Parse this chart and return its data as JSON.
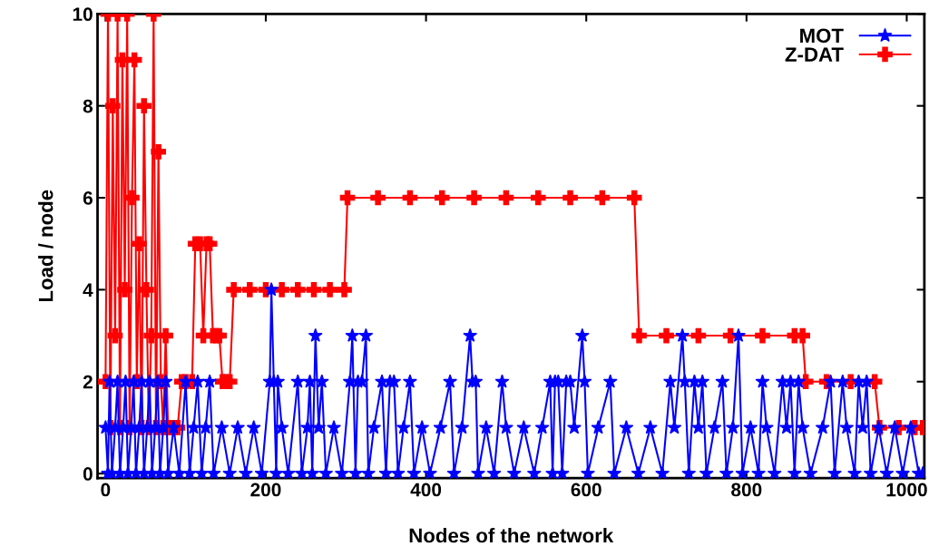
{
  "chart_data": {
    "type": "line",
    "xlabel": "Nodes of the network",
    "ylabel": "Load / node",
    "xlim": [
      -10,
      1022
    ],
    "ylim": [
      -0.1,
      10
    ],
    "xticks": [
      0,
      200,
      400,
      600,
      800,
      1000
    ],
    "yticks": [
      0,
      2,
      4,
      6,
      8,
      10
    ],
    "grid": false,
    "legend": "top right",
    "line_style": "solid",
    "series": [
      {
        "name": "MOT",
        "color": "#0000ff",
        "marker": "star",
        "x": [
          0,
          3,
          5,
          8,
          12,
          15,
          18,
          22,
          25,
          28,
          32,
          35,
          38,
          42,
          45,
          48,
          52,
          55,
          58,
          62,
          65,
          68,
          72,
          75,
          78,
          85,
          92,
          100,
          105,
          110,
          115,
          120,
          125,
          130,
          135,
          145,
          155,
          165,
          175,
          185,
          195,
          205,
          207,
          210,
          213,
          215,
          220,
          228,
          240,
          245,
          252,
          255,
          258,
          262,
          266,
          270,
          275,
          285,
          295,
          305,
          308,
          312,
          315,
          320,
          325,
          328,
          335,
          345,
          350,
          355,
          360,
          365,
          372,
          380,
          385,
          395,
          405,
          418,
          430,
          435,
          445,
          455,
          458,
          462,
          465,
          475,
          485,
          495,
          500,
          510,
          522,
          535,
          545,
          555,
          558,
          561,
          565,
          570,
          575,
          580,
          585,
          595,
          598,
          602,
          615,
          630,
          635,
          650,
          665,
          680,
          695,
          705,
          710,
          720,
          723,
          728,
          735,
          740,
          745,
          750,
          760,
          770,
          775,
          783,
          790,
          795,
          805,
          815,
          820,
          825,
          835,
          845,
          850,
          855,
          860,
          865,
          870,
          880,
          895,
          905,
          910,
          920,
          925,
          935,
          940,
          945,
          950,
          955,
          965,
          975,
          985,
          995,
          1005,
          1015,
          1020
        ],
        "values": [
          1,
          0,
          2,
          0,
          1,
          2,
          0,
          1,
          2,
          0,
          1,
          2,
          0,
          1,
          2,
          0,
          1,
          2,
          0,
          1,
          2,
          0,
          1,
          2,
          0,
          1,
          0,
          2,
          0,
          1,
          2,
          0,
          1,
          2,
          0,
          1,
          0,
          1,
          0,
          1,
          0,
          2,
          4,
          2,
          0,
          2,
          1,
          0,
          2,
          0,
          1,
          2,
          0,
          3,
          1,
          2,
          0,
          1,
          0,
          2,
          3,
          0,
          2,
          2,
          3,
          0,
          1,
          2,
          0,
          2,
          2,
          0,
          1,
          2,
          0,
          1,
          0,
          1,
          2,
          0,
          1,
          3,
          2,
          2,
          0,
          1,
          0,
          2,
          1,
          0,
          1,
          0,
          1,
          2,
          0,
          2,
          2,
          0,
          2,
          2,
          1,
          3,
          2,
          0,
          1,
          2,
          0,
          1,
          0,
          1,
          0,
          2,
          1,
          3,
          2,
          0,
          2,
          1,
          2,
          0,
          1,
          2,
          0,
          1,
          3,
          0,
          1,
          0,
          2,
          1,
          0,
          2,
          1,
          2,
          0,
          2,
          1,
          0,
          1,
          2,
          0,
          2,
          1,
          0,
          2,
          1,
          2,
          0,
          1,
          0,
          1,
          0,
          1,
          0,
          0
        ]
      },
      {
        "name": "Z-DAT",
        "color": "#ff0000",
        "marker": "cross",
        "x": [
          0,
          3,
          6,
          9,
          12,
          15,
          18,
          21,
          24,
          27,
          30,
          33,
          36,
          39,
          42,
          45,
          48,
          51,
          54,
          57,
          60,
          63,
          66,
          69,
          72,
          75,
          78,
          82,
          86,
          90,
          95,
          100,
          108,
          112,
          118,
          122,
          126,
          130,
          134,
          138,
          142,
          146,
          150,
          155,
          160,
          180,
          200,
          220,
          240,
          260,
          280,
          298,
          302,
          340,
          380,
          420,
          460,
          500,
          540,
          580,
          620,
          660,
          666,
          700,
          740,
          780,
          820,
          860,
          870,
          874,
          900,
          930,
          960,
          966,
          990,
          1010,
          1020
        ],
        "values": [
          2,
          10,
          1,
          8,
          3,
          10,
          1,
          9,
          4,
          10,
          1,
          6,
          9,
          2,
          5,
          1,
          8,
          4,
          1,
          3,
          10,
          1,
          7,
          2,
          1,
          3,
          1,
          1,
          1,
          1,
          2,
          2,
          2,
          5,
          5,
          3,
          5,
          5,
          3,
          3,
          3,
          2,
          2,
          2,
          4,
          4,
          4,
          4,
          4,
          4,
          4,
          4,
          6,
          6,
          6,
          6,
          6,
          6,
          6,
          6,
          6,
          6,
          3,
          3,
          3,
          3,
          3,
          3,
          3,
          2,
          2,
          2,
          2,
          1,
          1,
          1,
          1
        ]
      }
    ]
  }
}
